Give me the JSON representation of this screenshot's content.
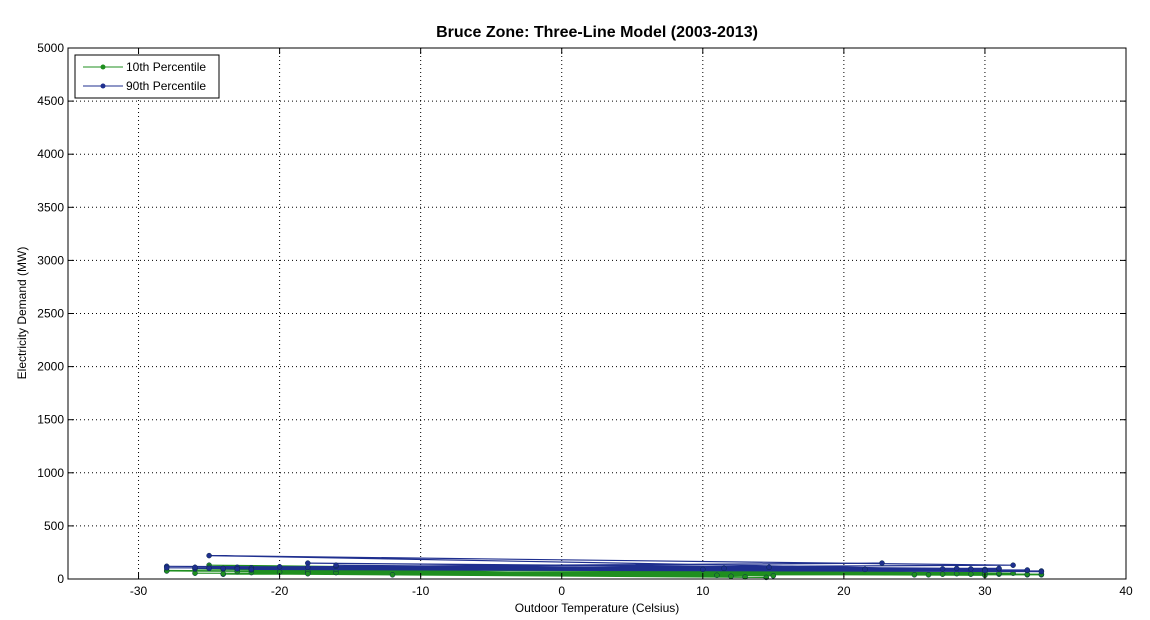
{
  "chart_data": {
    "type": "line",
    "title": "Bruce Zone: Three-Line Model (2003-2013)",
    "xlabel": "Outdoor Temperature (Celsius)",
    "ylabel": "Electricity Demand (MW)",
    "xlim": [
      -35,
      40
    ],
    "ylim": [
      0,
      5000
    ],
    "xticks": [
      -30,
      -20,
      -10,
      0,
      10,
      20,
      30,
      40
    ],
    "yticks": [
      0,
      500,
      1000,
      1500,
      2000,
      2500,
      3000,
      3500,
      4000,
      4500,
      5000
    ],
    "grid": true,
    "legend_position": "top-left",
    "series": [
      {
        "name": "10th Percentile",
        "color": "#1f8f1f",
        "x": [
          -28,
          34,
          -26,
          33,
          -25,
          32,
          -24,
          31,
          -23,
          30,
          -22,
          29,
          -18,
          28,
          -16,
          27,
          -12,
          26,
          -20,
          25,
          -24,
          14.5,
          -18,
          13,
          -16,
          12,
          -25,
          11,
          -22,
          15,
          -26,
          30,
          -23,
          31,
          -18,
          33,
          -28,
          34
        ],
        "y": [
          80,
          40,
          55,
          40,
          130,
          55,
          45,
          45,
          75,
          35,
          60,
          45,
          55,
          50,
          60,
          45,
          40,
          40,
          65,
          40,
          50,
          15,
          70,
          20,
          90,
          25,
          110,
          35,
          85,
          30,
          95,
          60,
          70,
          55,
          50,
          45,
          75,
          45
        ]
      },
      {
        "name": "90th Percentile",
        "color": "#1f2f8f",
        "x": [
          -28,
          34,
          -26,
          33,
          -25,
          32,
          -24,
          31,
          -23,
          30,
          -22,
          29,
          -18,
          28,
          -16,
          27,
          -20,
          22.7,
          -24,
          14.7,
          -18,
          11.5,
          -16,
          10,
          -28,
          21.5,
          -25,
          30,
          -23,
          31,
          -26,
          33,
          -22,
          34
        ],
        "y": [
          120,
          75,
          100,
          80,
          220,
          130,
          95,
          95,
          110,
          90,
          105,
          95,
          150,
          100,
          120,
          95,
          115,
          150,
          100,
          110,
          110,
          100,
          130,
          90,
          105,
          90,
          100,
          80,
          95,
          100,
          110,
          85,
          90,
          70
        ]
      }
    ]
  }
}
